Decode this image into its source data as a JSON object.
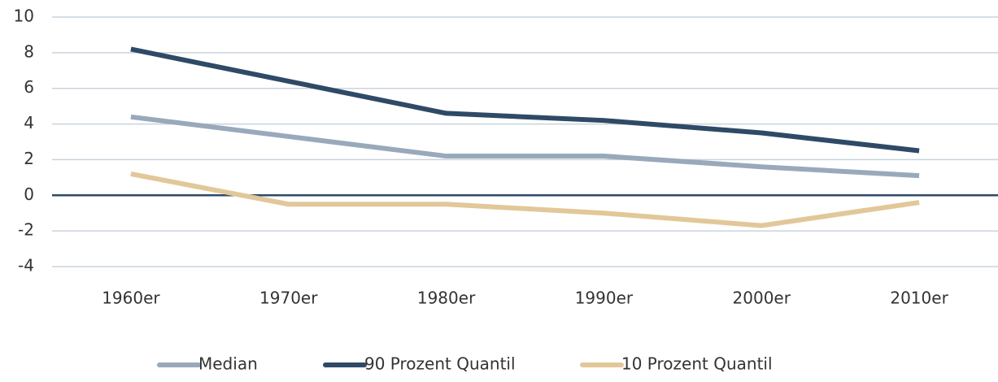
{
  "chart_data": {
    "type": "line",
    "categories": [
      "1960er",
      "1970er",
      "1980er",
      "1990er",
      "2000er",
      "2010er"
    ],
    "series": [
      {
        "name": "Median",
        "color": "#98a9bb",
        "values": [
          4.4,
          3.3,
          2.2,
          2.2,
          1.6,
          1.1
        ]
      },
      {
        "name": "90 Prozent Quantil",
        "color": "#2e4a66",
        "values": [
          8.2,
          6.4,
          4.6,
          4.2,
          3.5,
          2.5
        ]
      },
      {
        "name": "10 Prozent Quantil",
        "color": "#e2c799",
        "values": [
          1.2,
          -0.5,
          -0.5,
          -1.0,
          -1.7,
          -0.4
        ]
      }
    ],
    "ylim": [
      -4,
      10
    ],
    "yticks": [
      -4,
      -2,
      0,
      2,
      4,
      6,
      8,
      10
    ],
    "grid": true,
    "legend": "bottom"
  }
}
